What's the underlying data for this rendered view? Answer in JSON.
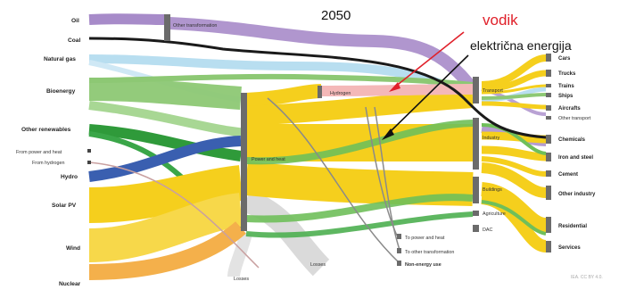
{
  "year": "2050",
  "annotations": {
    "hydrogen_label": "vodik",
    "electricity_label": "električna energija"
  },
  "sources": [
    {
      "id": "oil",
      "label": "Oil",
      "color": "#a78bc9"
    },
    {
      "id": "coal",
      "label": "Coal",
      "color": "#2a2a2a"
    },
    {
      "id": "gas",
      "label": "Natural gas",
      "color": "#b8def0"
    },
    {
      "id": "bio",
      "label": "Bioenergy",
      "color": "#8dc874"
    },
    {
      "id": "renew",
      "label": "Other renewables",
      "color": "#2f9a3a"
    },
    {
      "id": "fph",
      "label": "From power and heat",
      "color": "#555555"
    },
    {
      "id": "fh2",
      "label": "From hydrogen",
      "color": "#555555"
    },
    {
      "id": "hydro",
      "label": "Hydro",
      "color": "#3a5fb0"
    },
    {
      "id": "solar",
      "label": "Solar PV",
      "color": "#f5cf1d"
    },
    {
      "id": "wind",
      "label": "Wind",
      "color": "#f7d84a"
    },
    {
      "id": "nuclear",
      "label": "Nuclear",
      "color": "#f4b04b"
    }
  ],
  "intermediates": {
    "other_transform": "Other transformation",
    "power_heat": "Power and heat",
    "hydrogen": "Hydrogen",
    "losses1": "Losses",
    "losses2": "Losses",
    "to_power": "To power and heat",
    "to_other": "To other transformation",
    "nonenergy": "Non-energy use"
  },
  "sectors": {
    "transport": "Transport",
    "industry": "Industry",
    "buildings": "Buildings",
    "agriculture": "Agriculture",
    "dac": "DAC"
  },
  "end_uses": [
    {
      "label": "Cars",
      "bold": true
    },
    {
      "label": "Trucks",
      "bold": true
    },
    {
      "label": "Trains",
      "bold": true
    },
    {
      "label": "Ships",
      "bold": true
    },
    {
      "label": "Aircrafts",
      "bold": true
    },
    {
      "label": "Other transport",
      "bold": false
    },
    {
      "label": "Chemicals",
      "bold": true
    },
    {
      "label": "Iron and steel",
      "bold": true
    },
    {
      "label": "Cement",
      "bold": true
    },
    {
      "label": "Other industry",
      "bold": true
    },
    {
      "label": "Residential",
      "bold": true
    },
    {
      "label": "Services",
      "bold": true
    }
  ],
  "credit": "IEA. CC BY 4.0.",
  "colors": {
    "hydrogen": "#f4b8b8",
    "arrow_red": "#e0202a",
    "arrow_black": "#111111",
    "node": "#6b6b6b",
    "losses": "#d6d6d6"
  }
}
